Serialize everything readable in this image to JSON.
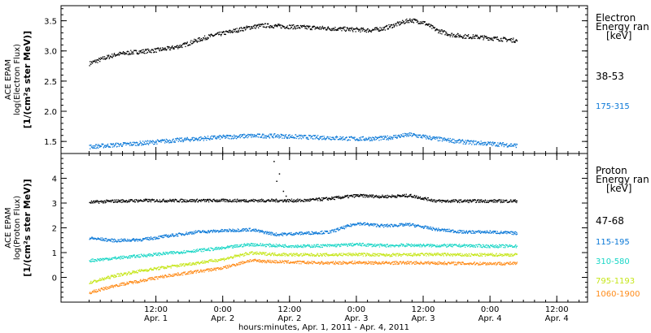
{
  "xaxis": {
    "ticks": [
      {
        "day": 1,
        "hour": 12,
        "time": "12:00",
        "date": "Apr. 1"
      },
      {
        "day": 2,
        "hour": 0,
        "time": "0:00",
        "date": "Apr. 2"
      },
      {
        "day": 2,
        "hour": 12,
        "time": "12:00",
        "date": "Apr. 2"
      },
      {
        "day": 3,
        "hour": 0,
        "time": "0:00",
        "date": "Apr. 3"
      },
      {
        "day": 3,
        "hour": 12,
        "time": "12:00",
        "date": "Apr. 3"
      },
      {
        "day": 4,
        "hour": 0,
        "time": "0:00",
        "date": "Apr. 4"
      },
      {
        "day": 4,
        "hour": 12,
        "time": "12:00",
        "date": "Apr. 4"
      }
    ],
    "label": "hours:minutes, Apr.  1, 2011 - Apr.  4, 2011"
  },
  "chart_data": [
    {
      "type": "scatter",
      "ylabel_lines": [
        "ACE EPAM",
        "log(Electron Flux)",
        "[1/(cm²s ster MeV)]"
      ],
      "ylim": [
        1.3,
        3.75
      ],
      "yticks": [
        1.5,
        2.0,
        2.5,
        3.0,
        3.5
      ],
      "ytick_labels": [
        "1.5",
        "2.0",
        "2.5",
        "3.0",
        "3.5"
      ],
      "legend_title": [
        "Electron",
        "Energy ran",
        "[keV]"
      ],
      "x_note": "x values are April 2011 dates as fractional day-of-month",
      "series": [
        {
          "name": "38-53",
          "color": "#000000",
          "x": [
            1.0,
            1.1,
            1.2,
            1.3,
            1.4,
            1.5,
            1.6,
            1.7,
            1.8,
            1.9,
            2.0,
            2.1,
            2.2,
            2.3,
            2.4,
            2.5,
            2.6,
            2.7,
            2.8,
            2.9,
            3.0,
            3.1,
            3.2,
            3.3,
            3.4,
            3.5,
            3.6,
            3.7,
            3.8,
            3.9,
            4.0,
            4.1,
            4.2
          ],
          "y": [
            2.8,
            2.88,
            2.95,
            2.98,
            3.0,
            3.02,
            3.05,
            3.1,
            3.18,
            3.25,
            3.3,
            3.35,
            3.4,
            3.43,
            3.42,
            3.41,
            3.4,
            3.39,
            3.38,
            3.37,
            3.36,
            3.35,
            3.38,
            3.45,
            3.52,
            3.48,
            3.35,
            3.28,
            3.25,
            3.24,
            3.22,
            3.2,
            3.18
          ]
        },
        {
          "name": "175-315",
          "color": "#0a78d7",
          "x": [
            1.0,
            1.2,
            1.4,
            1.6,
            1.8,
            2.0,
            2.2,
            2.4,
            2.6,
            2.8,
            3.0,
            3.2,
            3.4,
            3.6,
            3.8,
            4.0,
            4.2
          ],
          "y": [
            1.42,
            1.45,
            1.48,
            1.52,
            1.55,
            1.58,
            1.6,
            1.6,
            1.58,
            1.57,
            1.55,
            1.56,
            1.62,
            1.55,
            1.5,
            1.47,
            1.44
          ]
        }
      ]
    },
    {
      "type": "scatter",
      "ylabel_lines": [
        "ACE EPAM",
        "log(Proton Flux)",
        "[1/(cm²s ster MeV)]"
      ],
      "ylim": [
        -1.0,
        5.0
      ],
      "yticks": [
        0,
        1,
        2,
        3,
        4
      ],
      "ytick_labels": [
        "0",
        "1",
        "2",
        "3",
        "4"
      ],
      "legend_title": [
        "Proton",
        "Energy ran",
        "[keV]"
      ],
      "x_note": "x values are April 2011 dates as fractional day-of-month",
      "series": [
        {
          "name": "47-68",
          "color": "#000000",
          "x": [
            1.0,
            1.2,
            1.4,
            1.6,
            1.8,
            2.0,
            2.2,
            2.4,
            2.6,
            2.8,
            3.0,
            3.2,
            3.4,
            3.6,
            3.8,
            4.0,
            4.2
          ],
          "y": [
            3.05,
            3.1,
            3.12,
            3.12,
            3.12,
            3.12,
            3.12,
            3.12,
            3.12,
            3.2,
            3.32,
            3.28,
            3.32,
            3.1,
            3.1,
            3.1,
            3.1
          ],
          "spike": {
            "x": [
              2.38,
              2.4,
              2.42,
              2.45,
              2.47
            ],
            "y": [
              4.7,
              3.9,
              4.2,
              3.5,
              3.3
            ]
          }
        },
        {
          "name": "115-195",
          "color": "#0a78d7",
          "x": [
            1.0,
            1.2,
            1.4,
            1.6,
            1.8,
            2.0,
            2.2,
            2.4,
            2.6,
            2.8,
            3.0,
            3.2,
            3.4,
            3.6,
            3.8,
            4.0,
            4.2
          ],
          "y": [
            1.6,
            1.5,
            1.55,
            1.7,
            1.85,
            1.9,
            1.95,
            1.75,
            1.8,
            1.85,
            2.2,
            2.1,
            2.15,
            1.95,
            1.85,
            1.85,
            1.8
          ]
        },
        {
          "name": "310-580",
          "color": "#19d6c6",
          "x": [
            1.0,
            1.2,
            1.4,
            1.6,
            1.8,
            2.0,
            2.2,
            2.4,
            2.6,
            2.8,
            3.0,
            3.2,
            3.4,
            3.6,
            3.8,
            4.0,
            4.2
          ],
          "y": [
            0.7,
            0.8,
            0.9,
            1.0,
            1.1,
            1.2,
            1.35,
            1.3,
            1.28,
            1.3,
            1.35,
            1.3,
            1.32,
            1.3,
            1.3,
            1.28,
            1.28
          ]
        },
        {
          "name": "795-1193",
          "color": "#c6e61a",
          "x": [
            1.0,
            1.2,
            1.4,
            1.6,
            1.8,
            2.0,
            2.2,
            2.4,
            2.6,
            2.8,
            3.0,
            3.2,
            3.4,
            3.6,
            3.8,
            4.0,
            4.2
          ],
          "y": [
            -0.2,
            0.1,
            0.3,
            0.45,
            0.6,
            0.75,
            1.0,
            0.95,
            0.93,
            0.93,
            0.95,
            0.92,
            0.93,
            0.95,
            0.92,
            0.93,
            0.93
          ]
        },
        {
          "name": "1060-1900",
          "color": "#ff8c1a",
          "x": [
            1.0,
            1.2,
            1.4,
            1.6,
            1.8,
            2.0,
            2.2,
            2.4,
            2.6,
            2.8,
            3.0,
            3.2,
            3.4,
            3.6,
            3.8,
            4.0,
            4.2
          ],
          "y": [
            -0.6,
            -0.3,
            -0.1,
            0.1,
            0.25,
            0.4,
            0.7,
            0.65,
            0.62,
            0.6,
            0.62,
            0.6,
            0.61,
            0.6,
            0.58,
            0.58,
            0.58
          ]
        }
      ]
    }
  ]
}
